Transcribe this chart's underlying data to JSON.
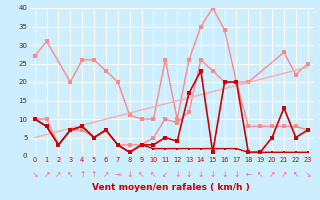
{
  "bg_color": "#cceeff",
  "grid_color": "#ffffff",
  "xlabel": "Vent moyen/en rafales ( km/h )",
  "xlabel_color": "#cc0000",
  "yticks": [
    0,
    5,
    10,
    15,
    20,
    25,
    30,
    35,
    40
  ],
  "xticks": [
    0,
    1,
    2,
    3,
    4,
    5,
    6,
    7,
    8,
    9,
    10,
    11,
    12,
    13,
    14,
    15,
    16,
    17,
    18,
    19,
    20,
    21,
    22,
    23
  ],
  "ylim": [
    0,
    40
  ],
  "xlim": [
    -0.5,
    23.5
  ],
  "series": [
    {
      "color": "#ff8888",
      "lw": 1.0,
      "ms": 2.5,
      "x": [
        0,
        1,
        3,
        4,
        5,
        6,
        7,
        8,
        9,
        10,
        11,
        12,
        13,
        14,
        15,
        16,
        17,
        18,
        21,
        22,
        23
      ],
      "y": [
        27,
        31,
        20,
        26,
        26,
        23,
        20,
        11,
        10,
        10,
        26,
        10,
        26,
        35,
        40,
        34,
        20,
        20,
        28,
        22,
        25
      ]
    },
    {
      "color": "#ff8888",
      "lw": 1.0,
      "ms": 2.5,
      "x": [
        0,
        1,
        2,
        3,
        4,
        5,
        6,
        7,
        8,
        9,
        10,
        11,
        12,
        13,
        14,
        15,
        16,
        17,
        18,
        19,
        20,
        21,
        22,
        23
      ],
      "y": [
        10,
        10,
        3,
        7,
        7,
        5,
        7,
        3,
        3,
        3,
        5,
        10,
        9,
        12,
        26,
        23,
        20,
        20,
        8,
        8,
        8,
        8,
        8,
        7
      ]
    },
    {
      "color": "#ffaaaa",
      "lw": 1.0,
      "ms": 0,
      "x": [
        0,
        23
      ],
      "y": [
        5,
        24
      ]
    },
    {
      "color": "#cc0000",
      "lw": 1.2,
      "ms": 2.5,
      "x": [
        0,
        1,
        2,
        3,
        4,
        5,
        6,
        7,
        8,
        9,
        10,
        11,
        12,
        13,
        14,
        15,
        16,
        17,
        18,
        19,
        20,
        21,
        22,
        23
      ],
      "y": [
        10,
        8,
        3,
        7,
        8,
        5,
        7,
        3,
        1,
        3,
        3,
        5,
        4,
        17,
        23,
        1,
        20,
        20,
        1,
        1,
        5,
        13,
        5,
        7
      ]
    },
    {
      "color": "#cc0000",
      "lw": 1.0,
      "ms": 2.0,
      "x": [
        0,
        1,
        2,
        3,
        4,
        5,
        6,
        7,
        8,
        9,
        10,
        11,
        12,
        13,
        14,
        15,
        16,
        17,
        18,
        19,
        20,
        21,
        22,
        23
      ],
      "y": [
        10,
        8,
        3,
        7,
        8,
        5,
        7,
        3,
        1,
        3,
        2,
        2,
        2,
        2,
        2,
        2,
        2,
        2,
        1,
        1,
        1,
        1,
        1,
        1
      ]
    }
  ],
  "wind_symbols": [
    "↘",
    "↗",
    "↗",
    "↖",
    "↑",
    "↑",
    "↗",
    "→",
    "↓",
    "↖",
    "↖",
    "↙",
    "↓",
    "↓",
    "↓",
    "↓",
    "↓",
    "↓",
    "←",
    "↖",
    "↗",
    "↗",
    "↖",
    "↘"
  ],
  "symbol_color": "#ff6666"
}
